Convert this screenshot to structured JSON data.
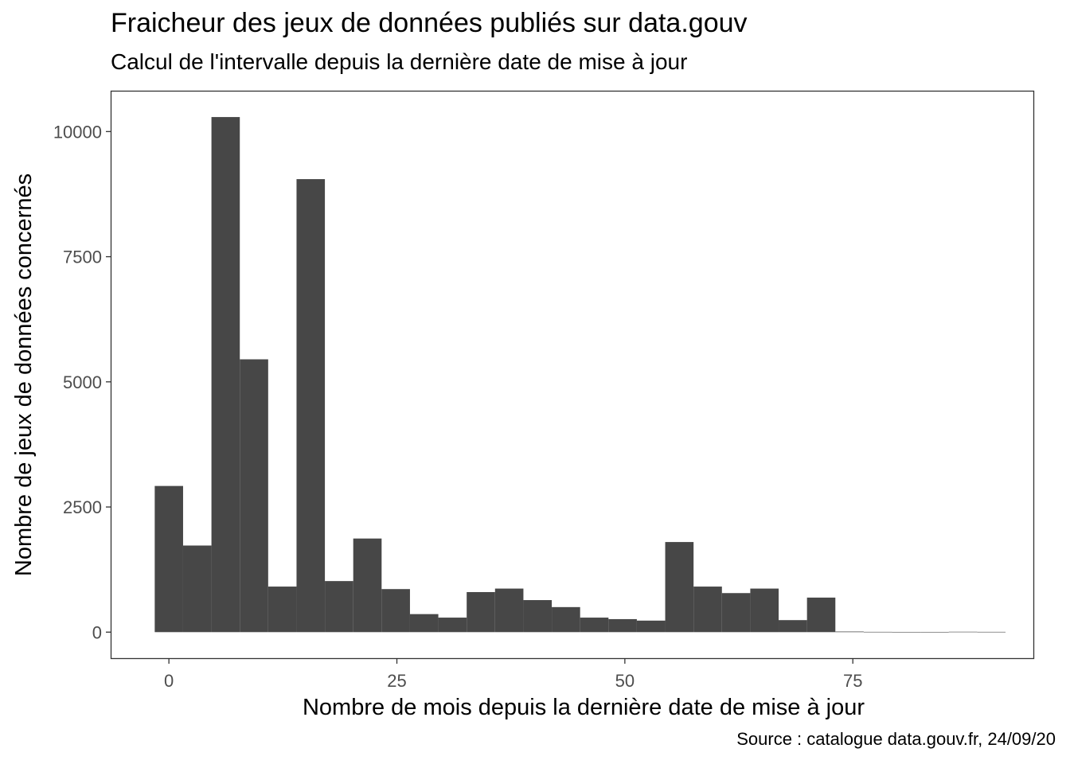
{
  "chart_data": {
    "type": "bar",
    "title": "Fraicheur des jeux de données publiés sur data.gouv",
    "subtitle": "Calcul de l'intervalle depuis la dernière date de mise à jour",
    "caption": "Source : catalogue data.gouv.fr, 24/09/20",
    "xlabel": "Nombre de mois depuis la dernière date de mise à jour",
    "ylabel": "Nombre de jeux de données concernés",
    "xlim": [
      -6.3,
      94.8
    ],
    "ylim": [
      -520,
      10800
    ],
    "xticks": [
      0,
      25,
      50,
      75
    ],
    "yticks": [
      0,
      2500,
      5000,
      7500,
      10000
    ],
    "bin_width": 3.11,
    "bar_color": "#474747",
    "grid": false,
    "panel_border": true,
    "bins": [
      {
        "x": 0.0,
        "value": 2920
      },
      {
        "x": 3.11,
        "value": 1730
      },
      {
        "x": 6.22,
        "value": 10290
      },
      {
        "x": 9.33,
        "value": 5450
      },
      {
        "x": 12.44,
        "value": 910
      },
      {
        "x": 15.55,
        "value": 9050
      },
      {
        "x": 18.66,
        "value": 1020
      },
      {
        "x": 21.77,
        "value": 1870
      },
      {
        "x": 24.88,
        "value": 860
      },
      {
        "x": 27.99,
        "value": 360
      },
      {
        "x": 31.1,
        "value": 290
      },
      {
        "x": 34.21,
        "value": 800
      },
      {
        "x": 37.32,
        "value": 870
      },
      {
        "x": 40.43,
        "value": 640
      },
      {
        "x": 43.54,
        "value": 500
      },
      {
        "x": 46.65,
        "value": 290
      },
      {
        "x": 49.76,
        "value": 260
      },
      {
        "x": 52.87,
        "value": 230
      },
      {
        "x": 55.98,
        "value": 1800
      },
      {
        "x": 59.09,
        "value": 910
      },
      {
        "x": 62.2,
        "value": 780
      },
      {
        "x": 65.31,
        "value": 870
      },
      {
        "x": 68.42,
        "value": 240
      },
      {
        "x": 71.53,
        "value": 690
      },
      {
        "x": 74.64,
        "value": 12
      },
      {
        "x": 77.75,
        "value": 6
      },
      {
        "x": 80.86,
        "value": 3
      },
      {
        "x": 83.97,
        "value": 3
      },
      {
        "x": 87.08,
        "value": 8
      },
      {
        "x": 90.19,
        "value": 6
      }
    ]
  }
}
